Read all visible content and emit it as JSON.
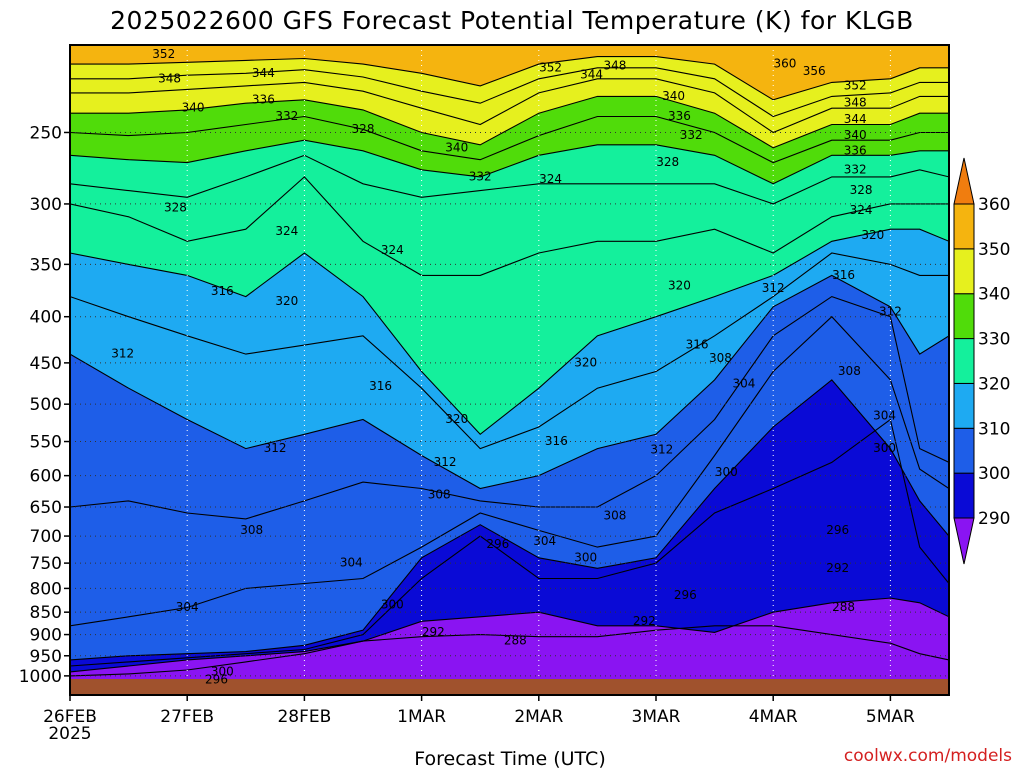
{
  "chart_data": {
    "type": "heatmap",
    "title": "2025022600 GFS Forecast Potential Temperature (K) for KLGB",
    "xlabel": "Forecast Time (UTC)",
    "ylabel": "",
    "credit": "coolwx.com/models",
    "x_ticks": [
      {
        "label": "26FEB",
        "label2": "2025",
        "day": 0
      },
      {
        "label": "27FEB",
        "day": 1
      },
      {
        "label": "28FEB",
        "day": 2
      },
      {
        "label": "1MAR",
        "day": 3
      },
      {
        "label": "2MAR",
        "day": 4
      },
      {
        "label": "3MAR",
        "day": 5
      },
      {
        "label": "4MAR",
        "day": 6
      },
      {
        "label": "5MAR",
        "day": 7
      }
    ],
    "xlim_days": [
      0,
      7.5
    ],
    "y_scale": "log",
    "ylim_hpa": [
      1050,
      200
    ],
    "y_ticks": [
      250,
      300,
      350,
      400,
      450,
      500,
      550,
      600,
      650,
      700,
      750,
      800,
      850,
      900,
      950,
      1000
    ],
    "colorbar": {
      "ticks": [
        290,
        300,
        310,
        320,
        330,
        340,
        350,
        360
      ],
      "colors": [
        "#8a14f2",
        "#0a0ad6",
        "#1e5ee8",
        "#1eaaf2",
        "#14f09c",
        "#50dc0a",
        "#e6f01e",
        "#f5b40f",
        "#f07d0f"
      ]
    },
    "isentropes": [
      {
        "theta": 288,
        "p": [
          1000,
          995,
          985,
          965,
          945,
          915,
          905,
          900,
          905,
          905,
          890,
          880,
          880,
          900,
          920,
          945,
          960
        ]
      },
      {
        "theta": 292,
        "p": [
          990,
          975,
          960,
          950,
          940,
          915,
          870,
          860,
          850,
          880,
          880,
          895,
          850,
          830,
          820,
          830,
          860
        ]
      },
      {
        "theta": 296,
        "p": [
          975,
          965,
          955,
          945,
          935,
          900,
          780,
          700,
          780,
          780,
          750,
          660,
          620,
          580,
          520,
          720,
          790
        ]
      },
      {
        "theta": 300,
        "p": [
          960,
          950,
          945,
          940,
          925,
          890,
          740,
          680,
          740,
          760,
          740,
          620,
          530,
          470,
          560,
          640,
          700
        ]
      },
      {
        "theta": 304,
        "p": [
          880,
          860,
          840,
          800,
          790,
          780,
          720,
          660,
          690,
          720,
          700,
          570,
          460,
          400,
          470,
          590,
          620
        ]
      },
      {
        "theta": 308,
        "p": [
          650,
          640,
          660,
          670,
          640,
          610,
          620,
          640,
          650,
          650,
          600,
          520,
          420,
          380,
          400,
          560,
          580
        ]
      },
      {
        "theta": 312,
        "p": [
          440,
          480,
          520,
          560,
          540,
          520,
          570,
          620,
          600,
          560,
          540,
          470,
          390,
          360,
          390,
          440,
          420
        ]
      },
      {
        "theta": 316,
        "p": [
          380,
          400,
          420,
          440,
          430,
          420,
          480,
          560,
          530,
          480,
          460,
          420,
          380,
          340,
          350,
          360,
          360
        ]
      },
      {
        "theta": 320,
        "p": [
          340,
          350,
          360,
          380,
          340,
          380,
          460,
          540,
          480,
          420,
          400,
          380,
          360,
          330,
          320,
          320,
          330
        ]
      },
      {
        "theta": 324,
        "p": [
          300,
          310,
          330,
          320,
          280,
          330,
          360,
          360,
          340,
          330,
          330,
          320,
          340,
          310,
          300,
          300,
          300
        ]
      },
      {
        "theta": 328,
        "p": [
          285,
          290,
          295,
          280,
          265,
          285,
          295,
          290,
          285,
          285,
          285,
          285,
          300,
          280,
          280,
          275,
          280
        ]
      },
      {
        "theta": 332,
        "p": [
          265,
          268,
          270,
          262,
          255,
          262,
          275,
          280,
          265,
          258,
          258,
          265,
          285,
          265,
          265,
          262,
          262
        ]
      },
      {
        "theta": 336,
        "p": [
          250,
          252,
          250,
          245,
          240,
          248,
          262,
          268,
          252,
          240,
          240,
          250,
          270,
          255,
          255,
          250,
          250
        ]
      },
      {
        "theta": 340,
        "p": [
          238,
          238,
          236,
          232,
          230,
          236,
          250,
          258,
          238,
          228,
          228,
          238,
          260,
          245,
          245,
          238,
          238
        ]
      },
      {
        "theta": 344,
        "p": [
          226,
          226,
          224,
          222,
          220,
          225,
          235,
          245,
          226,
          218,
          218,
          226,
          250,
          235,
          235,
          228,
          228
        ]
      },
      {
        "theta": 348,
        "p": [
          218,
          218,
          216,
          215,
          213,
          217,
          225,
          232,
          218,
          212,
          212,
          218,
          240,
          228,
          226,
          220,
          220
        ]
      },
      {
        "theta": 352,
        "p": [
          210,
          210,
          209,
          208,
          207,
          210,
          215,
          222,
          210,
          206,
          206,
          210,
          230,
          220,
          218,
          212,
          212
        ]
      }
    ],
    "isentrope_days": [
      0,
      0.5,
      1,
      1.5,
      2,
      2.5,
      3,
      3.5,
      4,
      4.5,
      5,
      5.5,
      6,
      6.5,
      7,
      7.25,
      7.5
    ],
    "contour_labels": [
      {
        "text": "352",
        "day": 0.8,
        "p": 205
      },
      {
        "text": "348",
        "day": 0.85,
        "p": 218
      },
      {
        "text": "344",
        "day": 1.65,
        "p": 215
      },
      {
        "text": "340",
        "day": 1.05,
        "p": 235
      },
      {
        "text": "336",
        "day": 1.65,
        "p": 230
      },
      {
        "text": "332",
        "day": 1.85,
        "p": 240
      },
      {
        "text": "328",
        "day": 2.5,
        "p": 248
      },
      {
        "text": "340",
        "day": 3.3,
        "p": 260
      },
      {
        "text": "332",
        "day": 3.5,
        "p": 280
      },
      {
        "text": "352",
        "day": 4.1,
        "p": 212
      },
      {
        "text": "344",
        "day": 4.45,
        "p": 216
      },
      {
        "text": "348",
        "day": 4.65,
        "p": 211
      },
      {
        "text": "340",
        "day": 5.15,
        "p": 228
      },
      {
        "text": "336",
        "day": 5.2,
        "p": 240
      },
      {
        "text": "332",
        "day": 5.3,
        "p": 252
      },
      {
        "text": "328",
        "day": 5.1,
        "p": 270
      },
      {
        "text": "324",
        "day": 4.1,
        "p": 282
      },
      {
        "text": "360",
        "day": 6.1,
        "p": 210
      },
      {
        "text": "356",
        "day": 6.35,
        "p": 214
      },
      {
        "text": "352",
        "day": 6.7,
        "p": 222
      },
      {
        "text": "348",
        "day": 6.7,
        "p": 232
      },
      {
        "text": "344",
        "day": 6.7,
        "p": 242
      },
      {
        "text": "340",
        "day": 6.7,
        "p": 252
      },
      {
        "text": "336",
        "day": 6.7,
        "p": 262
      },
      {
        "text": "332",
        "day": 6.7,
        "p": 275
      },
      {
        "text": "328",
        "day": 6.75,
        "p": 290
      },
      {
        "text": "324",
        "day": 6.75,
        "p": 305
      },
      {
        "text": "320",
        "day": 6.85,
        "p": 325
      },
      {
        "text": "316",
        "day": 6.6,
        "p": 360
      },
      {
        "text": "312",
        "day": 7.0,
        "p": 395
      },
      {
        "text": "308",
        "day": 6.65,
        "p": 460
      },
      {
        "text": "304",
        "day": 6.95,
        "p": 515
      },
      {
        "text": "300",
        "day": 6.95,
        "p": 560
      },
      {
        "text": "296",
        "day": 6.55,
        "p": 690
      },
      {
        "text": "292",
        "day": 6.55,
        "p": 760
      },
      {
        "text": "288",
        "day": 6.6,
        "p": 840
      },
      {
        "text": "328",
        "day": 0.9,
        "p": 303
      },
      {
        "text": "324",
        "day": 1.85,
        "p": 322
      },
      {
        "text": "324",
        "day": 2.75,
        "p": 338
      },
      {
        "text": "320",
        "day": 1.85,
        "p": 385
      },
      {
        "text": "316",
        "day": 1.3,
        "p": 375
      },
      {
        "text": "320",
        "day": 5.2,
        "p": 370
      },
      {
        "text": "312",
        "day": 6.0,
        "p": 372
      },
      {
        "text": "316",
        "day": 5.35,
        "p": 430
      },
      {
        "text": "308",
        "day": 5.55,
        "p": 445
      },
      {
        "text": "304",
        "day": 5.75,
        "p": 475
      },
      {
        "text": "320",
        "day": 4.4,
        "p": 450
      },
      {
        "text": "312",
        "day": 0.45,
        "p": 440
      },
      {
        "text": "316",
        "day": 2.65,
        "p": 478
      },
      {
        "text": "320",
        "day": 3.3,
        "p": 520
      },
      {
        "text": "316",
        "day": 4.15,
        "p": 550
      },
      {
        "text": "312",
        "day": 5.05,
        "p": 562
      },
      {
        "text": "300",
        "day": 5.6,
        "p": 595
      },
      {
        "text": "312",
        "day": 1.75,
        "p": 560
      },
      {
        "text": "312",
        "day": 3.2,
        "p": 580
      },
      {
        "text": "308",
        "day": 3.15,
        "p": 630
      },
      {
        "text": "308",
        "day": 4.65,
        "p": 665
      },
      {
        "text": "308",
        "day": 1.55,
        "p": 690
      },
      {
        "text": "304",
        "day": 2.4,
        "p": 750
      },
      {
        "text": "304",
        "day": 4.05,
        "p": 710
      },
      {
        "text": "300",
        "day": 4.4,
        "p": 740
      },
      {
        "text": "296",
        "day": 3.65,
        "p": 715
      },
      {
        "text": "304",
        "day": 1.0,
        "p": 840
      },
      {
        "text": "300",
        "day": 2.75,
        "p": 835
      },
      {
        "text": "296",
        "day": 5.25,
        "p": 815
      },
      {
        "text": "292",
        "day": 4.9,
        "p": 870
      },
      {
        "text": "292",
        "day": 3.1,
        "p": 895
      },
      {
        "text": "288",
        "day": 3.8,
        "p": 915
      },
      {
        "text": "300",
        "day": 1.3,
        "p": 990
      },
      {
        "text": "296",
        "day": 1.25,
        "p": 1010
      }
    ]
  }
}
